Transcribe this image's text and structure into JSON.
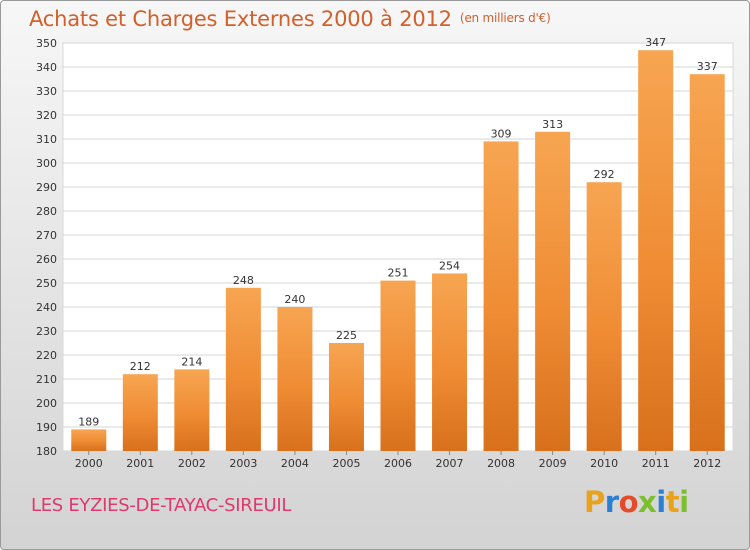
{
  "chart_data": {
    "type": "bar",
    "title": "Achats et Charges Externes 2000 à 2012",
    "unit": "(en milliers d'€)",
    "categories": [
      "2000",
      "2001",
      "2002",
      "2003",
      "2004",
      "2005",
      "2006",
      "2007",
      "2008",
      "2009",
      "2010",
      "2011",
      "2012"
    ],
    "values": [
      189,
      212,
      214,
      248,
      240,
      225,
      251,
      254,
      309,
      313,
      292,
      347,
      337
    ],
    "ylim": [
      180,
      350
    ],
    "yticks": [
      180,
      190,
      200,
      210,
      220,
      230,
      240,
      250,
      260,
      270,
      280,
      290,
      300,
      310,
      320,
      330,
      340,
      350
    ],
    "grid": true,
    "bar_color": "#f08c35",
    "title_color": "#d2602b"
  },
  "footer": {
    "commune": "LES EYZIES-DE-TAYAC-SIREUIL",
    "logo_letters": [
      "P",
      "r",
      "o",
      "x",
      "i",
      "t",
      "i"
    ],
    "logo_colors": [
      "#e8a21b",
      "#2b7fd3",
      "#e34b2a",
      "#7cbf2d",
      "#2b7fd3",
      "#e8a21b",
      "#7cbf2d"
    ]
  }
}
